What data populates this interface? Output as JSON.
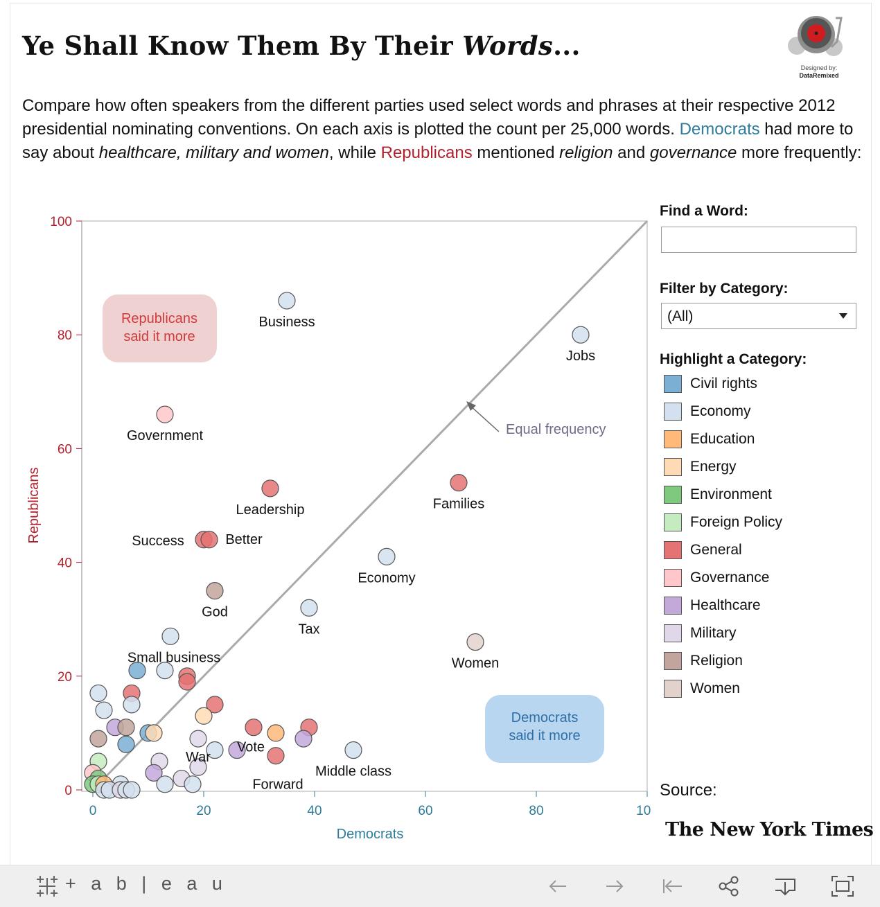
{
  "header": {
    "title_main": "Ye Shall Know Them By Their ",
    "title_italic": "Words",
    "title_end": "...",
    "designed_by_line1": "Designed by:",
    "designed_by_line2": "DataRemixed"
  },
  "description": {
    "p1": "Compare how often speakers from the different parties used select words and phrases at their respective 2012 presidential nominating conventions. On each axis is plotted the count per 25,000 words.",
    "democrats": "Democrats",
    "t2": " had more to say about ",
    "dem_topics": "healthcare, military and women",
    "t3": ", while ",
    "republicans": "Republicans",
    "t4": " mentioned ",
    "rep_topic1": "religion",
    "t5": " and ",
    "rep_topic2": "governance",
    "t6": " more frequently:"
  },
  "sidebar": {
    "find_label": "Find a Word:",
    "find_value": "",
    "filter_label": "Filter by Category:",
    "filter_value": "(All)",
    "highlight_label": "Highlight a Category:",
    "categories": [
      {
        "label": "Civil rights",
        "color": "#7bafd4"
      },
      {
        "label": "Economy",
        "color": "#d3e0f0"
      },
      {
        "label": "Education",
        "color": "#ffb979"
      },
      {
        "label": "Energy",
        "color": "#ffdab4"
      },
      {
        "label": "Environment",
        "color": "#7ec97e"
      },
      {
        "label": "Foreign Policy",
        "color": "#c5ecc0"
      },
      {
        "label": "General",
        "color": "#e57373"
      },
      {
        "label": "Governance",
        "color": "#ffc7c9"
      },
      {
        "label": "Healthcare",
        "color": "#c3a8da"
      },
      {
        "label": "Military",
        "color": "#e0d8ea"
      },
      {
        "label": "Religion",
        "color": "#c2a59c"
      },
      {
        "label": "Women",
        "color": "#e3d2cc"
      }
    ],
    "source_label": "Source:",
    "source_name": "The New York Times"
  },
  "toolbar": {
    "brand": "+ a b | e a u",
    "icons": [
      "undo-icon",
      "redo-icon",
      "revert-icon",
      "share-icon",
      "download-icon",
      "fullscreen-icon"
    ]
  },
  "chart_data": {
    "type": "scatter",
    "xlabel": "Democrats",
    "ylabel": "Republicans",
    "xlim": [
      0,
      100
    ],
    "ylim": [
      0,
      100
    ],
    "xticks": [
      0,
      20,
      40,
      60,
      80,
      100
    ],
    "yticks": [
      0,
      20,
      40,
      60,
      80,
      100
    ],
    "grid": false,
    "diagonal_label": "Equal frequency",
    "rep_box": "Republicans\nsaid it more",
    "dem_box": "Democrats\nsaid it more",
    "points": [
      {
        "x": 35,
        "y": 86,
        "cat": "Economy",
        "label": "Business"
      },
      {
        "x": 88,
        "y": 80,
        "cat": "Economy",
        "label": "Jobs"
      },
      {
        "x": 13,
        "y": 66,
        "cat": "Governance",
        "label": "Government"
      },
      {
        "x": 66,
        "y": 54,
        "cat": "General",
        "label": "Families"
      },
      {
        "x": 32,
        "y": 53,
        "cat": "General",
        "label": "Leadership"
      },
      {
        "x": 20,
        "y": 44,
        "cat": "General",
        "label": "Success"
      },
      {
        "x": 21,
        "y": 44,
        "cat": "General",
        "label": "Better"
      },
      {
        "x": 53,
        "y": 41,
        "cat": "Economy",
        "label": "Economy"
      },
      {
        "x": 22,
        "y": 35,
        "cat": "Religion",
        "label": "God"
      },
      {
        "x": 39,
        "y": 32,
        "cat": "Economy",
        "label": "Tax"
      },
      {
        "x": 14,
        "y": 27,
        "cat": "Economy",
        "label": "Small business"
      },
      {
        "x": 69,
        "y": 26,
        "cat": "Women",
        "label": "Women"
      },
      {
        "x": 47,
        "y": 7,
        "cat": "Economy",
        "label": "Middle class"
      },
      {
        "x": 26,
        "y": 7,
        "cat": "Healthcare",
        "label": "Vote"
      },
      {
        "x": 19,
        "y": 4,
        "cat": "Military",
        "label": "War"
      },
      {
        "x": 33,
        "y": 6,
        "cat": "General",
        "label": "Forward"
      },
      {
        "x": 8,
        "y": 21,
        "cat": "Civil rights",
        "label": ""
      },
      {
        "x": 13,
        "y": 21,
        "cat": "Economy",
        "label": ""
      },
      {
        "x": 17,
        "y": 20,
        "cat": "General",
        "label": ""
      },
      {
        "x": 17,
        "y": 19,
        "cat": "General",
        "label": ""
      },
      {
        "x": 1,
        "y": 17,
        "cat": "Economy",
        "label": ""
      },
      {
        "x": 7,
        "y": 17,
        "cat": "General",
        "label": ""
      },
      {
        "x": 7,
        "y": 15,
        "cat": "Economy",
        "label": ""
      },
      {
        "x": 22,
        "y": 15,
        "cat": "General",
        "label": ""
      },
      {
        "x": 2,
        "y": 14,
        "cat": "Economy",
        "label": ""
      },
      {
        "x": 20,
        "y": 13,
        "cat": "Energy",
        "label": ""
      },
      {
        "x": 4,
        "y": 11,
        "cat": "Healthcare",
        "label": ""
      },
      {
        "x": 6,
        "y": 11,
        "cat": "Religion",
        "label": ""
      },
      {
        "x": 29,
        "y": 11,
        "cat": "General",
        "label": ""
      },
      {
        "x": 39,
        "y": 11,
        "cat": "General",
        "label": ""
      },
      {
        "x": 10,
        "y": 10,
        "cat": "Civil rights",
        "label": ""
      },
      {
        "x": 11,
        "y": 10,
        "cat": "Energy",
        "label": ""
      },
      {
        "x": 33,
        "y": 10,
        "cat": "Education",
        "label": ""
      },
      {
        "x": 1,
        "y": 9,
        "cat": "Religion",
        "label": ""
      },
      {
        "x": 19,
        "y": 9,
        "cat": "Military",
        "label": ""
      },
      {
        "x": 38,
        "y": 9,
        "cat": "Healthcare",
        "label": ""
      },
      {
        "x": 6,
        "y": 8,
        "cat": "Civil rights",
        "label": ""
      },
      {
        "x": 22,
        "y": 7,
        "cat": "Economy",
        "label": ""
      },
      {
        "x": 1,
        "y": 5,
        "cat": "Foreign Policy",
        "label": ""
      },
      {
        "x": 12,
        "y": 5,
        "cat": "Military",
        "label": ""
      },
      {
        "x": 11,
        "y": 3,
        "cat": "Healthcare",
        "label": ""
      },
      {
        "x": 0,
        "y": 3,
        "cat": "Governance",
        "label": ""
      },
      {
        "x": 16,
        "y": 2,
        "cat": "Military",
        "label": ""
      },
      {
        "x": 1,
        "y": 2,
        "cat": "Environment",
        "label": ""
      },
      {
        "x": 13,
        "y": 1,
        "cat": "Economy",
        "label": ""
      },
      {
        "x": 18,
        "y": 1,
        "cat": "Economy",
        "label": ""
      },
      {
        "x": 0,
        "y": 1,
        "cat": "Environment",
        "label": ""
      },
      {
        "x": 1,
        "y": 1,
        "cat": "Foreign Policy",
        "label": ""
      },
      {
        "x": 2,
        "y": 1,
        "cat": "Education",
        "label": ""
      },
      {
        "x": 5,
        "y": 1,
        "cat": "Economy",
        "label": ""
      },
      {
        "x": 2,
        "y": 0,
        "cat": "Economy",
        "label": ""
      },
      {
        "x": 3,
        "y": 0,
        "cat": "Economy",
        "label": ""
      },
      {
        "x": 5,
        "y": 0,
        "cat": "Military",
        "label": ""
      },
      {
        "x": 6,
        "y": 0,
        "cat": "Economy",
        "label": ""
      },
      {
        "x": 7,
        "y": 0,
        "cat": "Economy",
        "label": ""
      }
    ]
  }
}
